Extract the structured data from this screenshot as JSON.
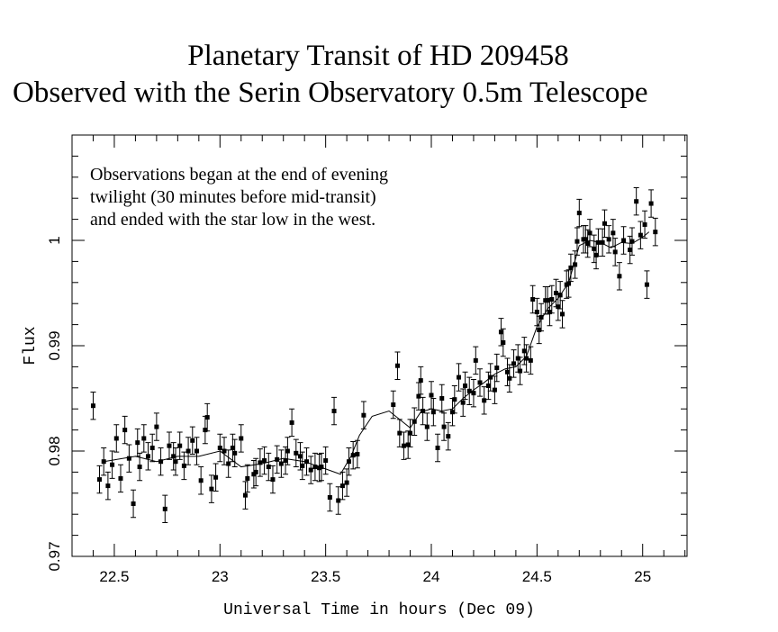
{
  "chart_data": {
    "type": "scatter",
    "title": [
      "Planetary Transit of HD 209458",
      "Observed with the Serin Observatory 0.5m Telescope"
    ],
    "annotation": [
      "Observations began at the end of evening",
      "twilight (30 minutes before mid-transit)",
      "and ended with the star low in the west."
    ],
    "x_label": "Universal Time in hours (Dec 09)",
    "y_label": "Flux",
    "xlim": [
      22.3,
      25.21
    ],
    "ylim": [
      0.97,
      1.01
    ],
    "xticks": [
      22.5,
      23,
      23.5,
      24,
      24.5,
      25
    ],
    "yticks": [
      0.97,
      0.98,
      0.99,
      1
    ],
    "xminor": [
      22.3,
      22.4,
      22.6,
      22.7,
      22.8,
      22.9,
      23.1,
      23.2,
      23.3,
      23.4,
      23.6,
      23.7,
      23.8,
      23.9,
      24.1,
      24.2,
      24.3,
      24.4,
      24.6,
      24.7,
      24.8,
      24.9,
      25.1,
      25.2
    ],
    "yminor": [
      0.972,
      0.974,
      0.976,
      0.978,
      0.982,
      0.984,
      0.986,
      0.988,
      0.992,
      0.994,
      0.996,
      0.998,
      1.002,
      1.004,
      1.006,
      1.008
    ],
    "color": "#000000",
    "points": {
      "x": [
        22.4,
        22.43,
        22.45,
        22.47,
        22.49,
        22.51,
        22.53,
        22.55,
        22.57,
        22.59,
        22.61,
        22.62,
        22.64,
        22.66,
        22.68,
        22.7,
        22.72,
        22.74,
        22.76,
        22.78,
        22.79,
        22.81,
        22.83,
        22.85,
        22.87,
        22.89,
        22.91,
        22.93,
        22.94,
        22.96,
        22.98,
        23.0,
        23.02,
        23.04,
        23.06,
        23.07,
        23.1,
        23.12,
        23.13,
        23.16,
        23.17,
        23.19,
        23.21,
        23.23,
        23.25,
        23.27,
        23.29,
        23.31,
        23.32,
        23.34,
        23.36,
        23.38,
        23.39,
        23.41,
        23.43,
        23.45,
        23.47,
        23.48,
        23.5,
        23.52,
        23.54,
        23.56,
        23.58,
        23.6,
        23.61,
        23.63,
        23.65,
        23.68,
        23.82,
        23.84,
        23.85,
        23.87,
        23.89,
        23.9,
        23.92,
        23.94,
        23.95,
        23.96,
        23.98,
        24.0,
        24.01,
        24.03,
        24.05,
        24.06,
        24.08,
        24.1,
        24.11,
        24.13,
        24.15,
        24.16,
        24.18,
        24.2,
        24.21,
        24.23,
        24.25,
        24.27,
        24.28,
        24.3,
        24.31,
        24.33,
        24.34,
        24.36,
        24.37,
        24.39,
        24.41,
        24.42,
        24.44,
        24.45,
        24.47,
        24.48,
        24.5,
        24.51,
        24.52,
        24.54,
        24.55,
        24.56,
        24.57,
        24.59,
        24.6,
        24.61,
        24.62,
        24.64,
        24.65,
        24.66,
        24.68,
        24.69,
        24.7,
        24.72,
        24.73,
        24.74,
        24.75,
        24.77,
        24.78,
        24.79,
        24.81,
        24.82,
        24.84,
        24.86,
        24.87,
        24.89,
        24.91,
        24.94,
        24.95,
        24.97,
        24.99,
        25.01,
        25.02,
        25.04,
        25.06
      ],
      "values": [
        0.9843,
        0.9773,
        0.979,
        0.9767,
        0.9787,
        0.9812,
        0.9774,
        0.982,
        0.9793,
        0.975,
        0.9808,
        0.9785,
        0.9812,
        0.9795,
        0.9803,
        0.9823,
        0.979,
        0.9745,
        0.9805,
        0.9795,
        0.979,
        0.9805,
        0.9786,
        0.98,
        0.981,
        0.98,
        0.9772,
        0.982,
        0.9832,
        0.9764,
        0.9775,
        0.9803,
        0.98,
        0.9788,
        0.9803,
        0.9798,
        0.9812,
        0.9758,
        0.9774,
        0.9778,
        0.978,
        0.9789,
        0.9791,
        0.9785,
        0.9773,
        0.9792,
        0.9788,
        0.9791,
        0.98,
        0.9827,
        0.9798,
        0.9795,
        0.9786,
        0.979,
        0.9782,
        0.9785,
        0.9784,
        0.9785,
        0.9791,
        0.9756,
        0.9838,
        0.9753,
        0.9767,
        0.977,
        0.979,
        0.9796,
        0.9797,
        0.9834,
        0.9844,
        0.9881,
        0.9817,
        0.9805,
        0.9806,
        0.9817,
        0.9828,
        0.9852,
        0.9867,
        0.9838,
        0.9823,
        0.9853,
        0.9837,
        0.9803,
        0.985,
        0.9823,
        0.9814,
        0.9837,
        0.9849,
        0.987,
        0.9846,
        0.9862,
        0.9857,
        0.9855,
        0.9886,
        0.9865,
        0.9848,
        0.9862,
        0.987,
        0.9858,
        0.9879,
        0.9913,
        0.9903,
        0.9875,
        0.9869,
        0.9883,
        0.9888,
        0.9876,
        0.9895,
        0.9888,
        0.9886,
        0.9944,
        0.9932,
        0.9915,
        0.9927,
        0.9943,
        0.9943,
        0.9932,
        0.9944,
        0.995,
        0.9937,
        0.9948,
        0.993,
        0.9958,
        0.9959,
        0.9974,
        0.9977,
        0.9999,
        1.0026,
        1.0001,
        1.0001,
        0.9997,
        1.0007,
        0.9992,
        0.9986,
        0.9998,
        0.9998,
        1.0016,
        1.0001,
        1.0007,
        0.9989,
        0.9966,
        1.0,
        0.9991,
        0.9999,
        1.0037,
        1.0005,
        1.0015,
        0.9958,
        1.0035,
        1.0008
      ],
      "yerr": 0.0013
    },
    "model": {
      "x": [
        22.45,
        22.6,
        22.7,
        22.8,
        22.9,
        23.0,
        23.1,
        23.2,
        23.3,
        23.4,
        23.5,
        23.57,
        23.62,
        23.66,
        23.72,
        23.8,
        23.85,
        23.9,
        23.95,
        24.0,
        24.05,
        24.1,
        24.15,
        24.2,
        24.25,
        24.3,
        24.35,
        24.4,
        24.45,
        24.5,
        24.55,
        24.6,
        24.65,
        24.7,
        24.75,
        24.8,
        24.85,
        24.9,
        24.95,
        25.0,
        25.03
      ],
      "values": [
        0.979,
        0.9795,
        0.979,
        0.9795,
        0.9795,
        0.98,
        0.9785,
        0.9788,
        0.9793,
        0.979,
        0.9783,
        0.9778,
        0.9795,
        0.9815,
        0.9833,
        0.9838,
        0.983,
        0.9822,
        0.9837,
        0.984,
        0.9838,
        0.984,
        0.985,
        0.9858,
        0.9865,
        0.9873,
        0.9878,
        0.988,
        0.989,
        0.9918,
        0.9935,
        0.9945,
        0.996,
        0.9995,
        1.0,
        0.9998,
        0.9993,
        0.9998,
        0.9997,
        1.0003,
        1.0008
      ]
    }
  }
}
